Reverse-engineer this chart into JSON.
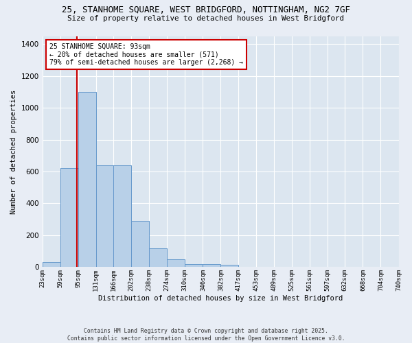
{
  "title_line1": "25, STANHOME SQUARE, WEST BRIDGFORD, NOTTINGHAM, NG2 7GF",
  "title_line2": "Size of property relative to detached houses in West Bridgford",
  "xlabel": "Distribution of detached houses by size in West Bridgford",
  "ylabel": "Number of detached properties",
  "bar_color": "#b8d0e8",
  "bar_edge_color": "#6699cc",
  "bg_color": "#dce6f0",
  "grid_color": "#ffffff",
  "fig_color": "#e8edf5",
  "bin_edges": [
    23,
    59,
    95,
    131,
    166,
    202,
    238,
    274,
    310,
    346,
    382,
    417,
    453,
    489,
    525,
    561,
    597,
    632,
    668,
    704,
    740
  ],
  "bin_labels": [
    "23sqm",
    "59sqm",
    "95sqm",
    "131sqm",
    "166sqm",
    "202sqm",
    "238sqm",
    "274sqm",
    "310sqm",
    "346sqm",
    "382sqm",
    "417sqm",
    "453sqm",
    "489sqm",
    "525sqm",
    "561sqm",
    "597sqm",
    "632sqm",
    "668sqm",
    "704sqm",
    "740sqm"
  ],
  "bar_heights": [
    30,
    620,
    1100,
    640,
    640,
    290,
    120,
    50,
    20,
    20,
    15,
    0,
    0,
    0,
    0,
    0,
    0,
    0,
    0,
    0
  ],
  "ylim": [
    0,
    1450
  ],
  "yticks": [
    0,
    200,
    400,
    600,
    800,
    1000,
    1200,
    1400
  ],
  "property_size": 93,
  "annotation_title": "25 STANHOME SQUARE: 93sqm",
  "annotation_line2": "← 20% of detached houses are smaller (571)",
  "annotation_line3": "79% of semi-detached houses are larger (2,268) →",
  "annotation_box_color": "#ffffff",
  "annotation_box_edge": "#cc0000",
  "redline_color": "#cc0000",
  "footer_line1": "Contains HM Land Registry data © Crown copyright and database right 2025.",
  "footer_line2": "Contains public sector information licensed under the Open Government Licence v3.0."
}
